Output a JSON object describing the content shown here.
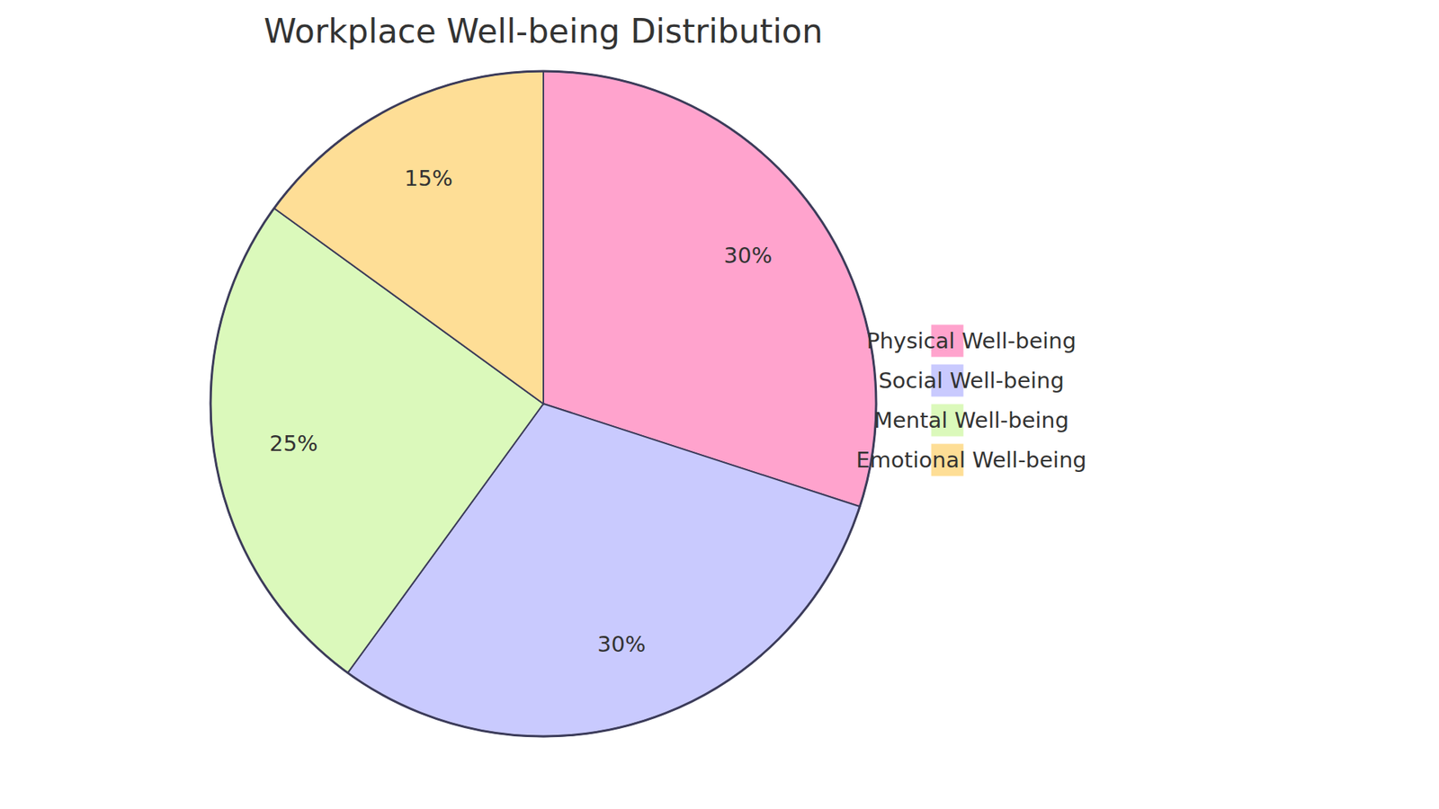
{
  "chart_data": {
    "type": "pie",
    "title": "Workplace Well-being Distribution",
    "categories": [
      "Physical Well-being",
      "Social Well-being",
      "Mental Well-being",
      "Emotional Well-being"
    ],
    "values": [
      30,
      30,
      25,
      15
    ],
    "value_labels": [
      "30%",
      "30%",
      "25%",
      "15%"
    ],
    "colors": [
      "#FFA3CD",
      "#C9CAFE",
      "#DBF9BB",
      "#FEDE96"
    ],
    "data_labels": true,
    "legend": "right"
  }
}
